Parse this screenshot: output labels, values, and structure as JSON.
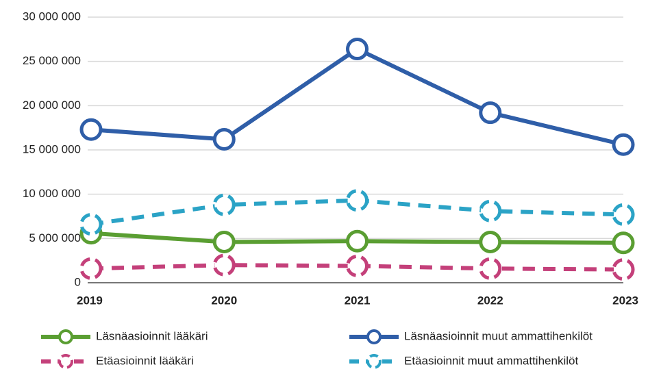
{
  "chart_data": {
    "type": "line",
    "categories": [
      "2019",
      "2020",
      "2021",
      "2022",
      "2023"
    ],
    "ylim": [
      0,
      30000000
    ],
    "yticks": [
      0,
      {
        "value": 5000000,
        "label": "5 000 000"
      },
      {
        "value": 10000000,
        "label": "10 000 000"
      },
      {
        "value": 15000000,
        "label": "15 000 000"
      },
      {
        "value": 20000000,
        "label": "20 000 000"
      },
      {
        "value": 25000000,
        "label": "25 000 000"
      },
      {
        "value": 30000000,
        "label": "30 000 000"
      }
    ],
    "grid": true,
    "series": [
      {
        "name": "Läsnäasioinnit lääkäri",
        "color": "#5a9e32",
        "style": "solid",
        "values": [
          5600000,
          4600000,
          4700000,
          4600000,
          4500000
        ]
      },
      {
        "name": "Läsnäasioinnit muut ammattihenkilöt",
        "color": "#2f5ea8",
        "style": "solid",
        "values": [
          17300000,
          16200000,
          26400000,
          19200000,
          15600000
        ]
      },
      {
        "name": "Etäasioinnit lääkäri",
        "color": "#c4407a",
        "style": "dashed",
        "values": [
          1600000,
          2000000,
          1900000,
          1600000,
          1500000
        ]
      },
      {
        "name": "Etäasioinnit muut ammattihenkilöt",
        "color": "#2ba3c6",
        "style": "dashed",
        "values": [
          6600000,
          8800000,
          9300000,
          8100000,
          7700000
        ]
      }
    ]
  }
}
